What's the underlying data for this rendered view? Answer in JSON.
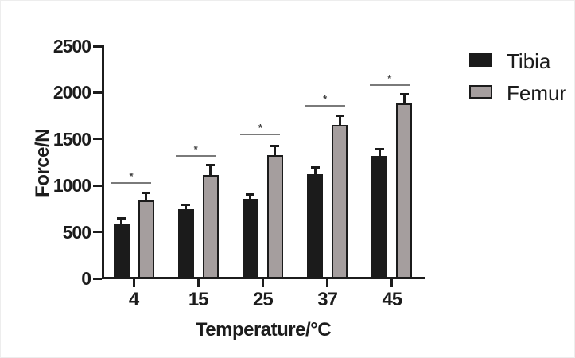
{
  "figure": {
    "background": "#ffffff",
    "border_color": "#ededed"
  },
  "chart_data": {
    "type": "bar",
    "title": "",
    "xlabel": "Temperature/°C",
    "ylabel": "Force/N",
    "ylim": [
      0,
      2500
    ],
    "yticks": [
      0,
      500,
      1000,
      1500,
      2000,
      2500
    ],
    "categories": [
      "4",
      "15",
      "25",
      "37",
      "45"
    ],
    "series": [
      {
        "name": "Tibia",
        "fill": "#1b1b1b",
        "border": "#1b1b1b",
        "values": [
          590,
          745,
          855,
          1120,
          1315
        ],
        "errors_plus": [
          70,
          60,
          60,
          85,
          85
        ]
      },
      {
        "name": "Femur",
        "fill": "#a59e9e",
        "border": "#1b1b1b",
        "values": [
          840,
          1115,
          1330,
          1655,
          1885
        ],
        "errors_plus": [
          90,
          115,
          110,
          110,
          110
        ]
      }
    ],
    "significance_markers": [
      {
        "category": "4",
        "label": "*",
        "line_y": 1040
      },
      {
        "category": "15",
        "label": "*",
        "line_y": 1330
      },
      {
        "category": "25",
        "label": "*",
        "line_y": 1560
      },
      {
        "category": "37",
        "label": "*",
        "line_y": 1870
      },
      {
        "category": "45",
        "label": "*",
        "line_y": 2090
      }
    ],
    "legend": {
      "position": "top-right",
      "entries": [
        "Tibia",
        "Femur"
      ]
    },
    "grid": false,
    "error_bars": "upper-only",
    "colors": {
      "axis": "#1c1c1c",
      "text": "#1c1c1c",
      "sig_line": "#7a7a7a"
    }
  }
}
